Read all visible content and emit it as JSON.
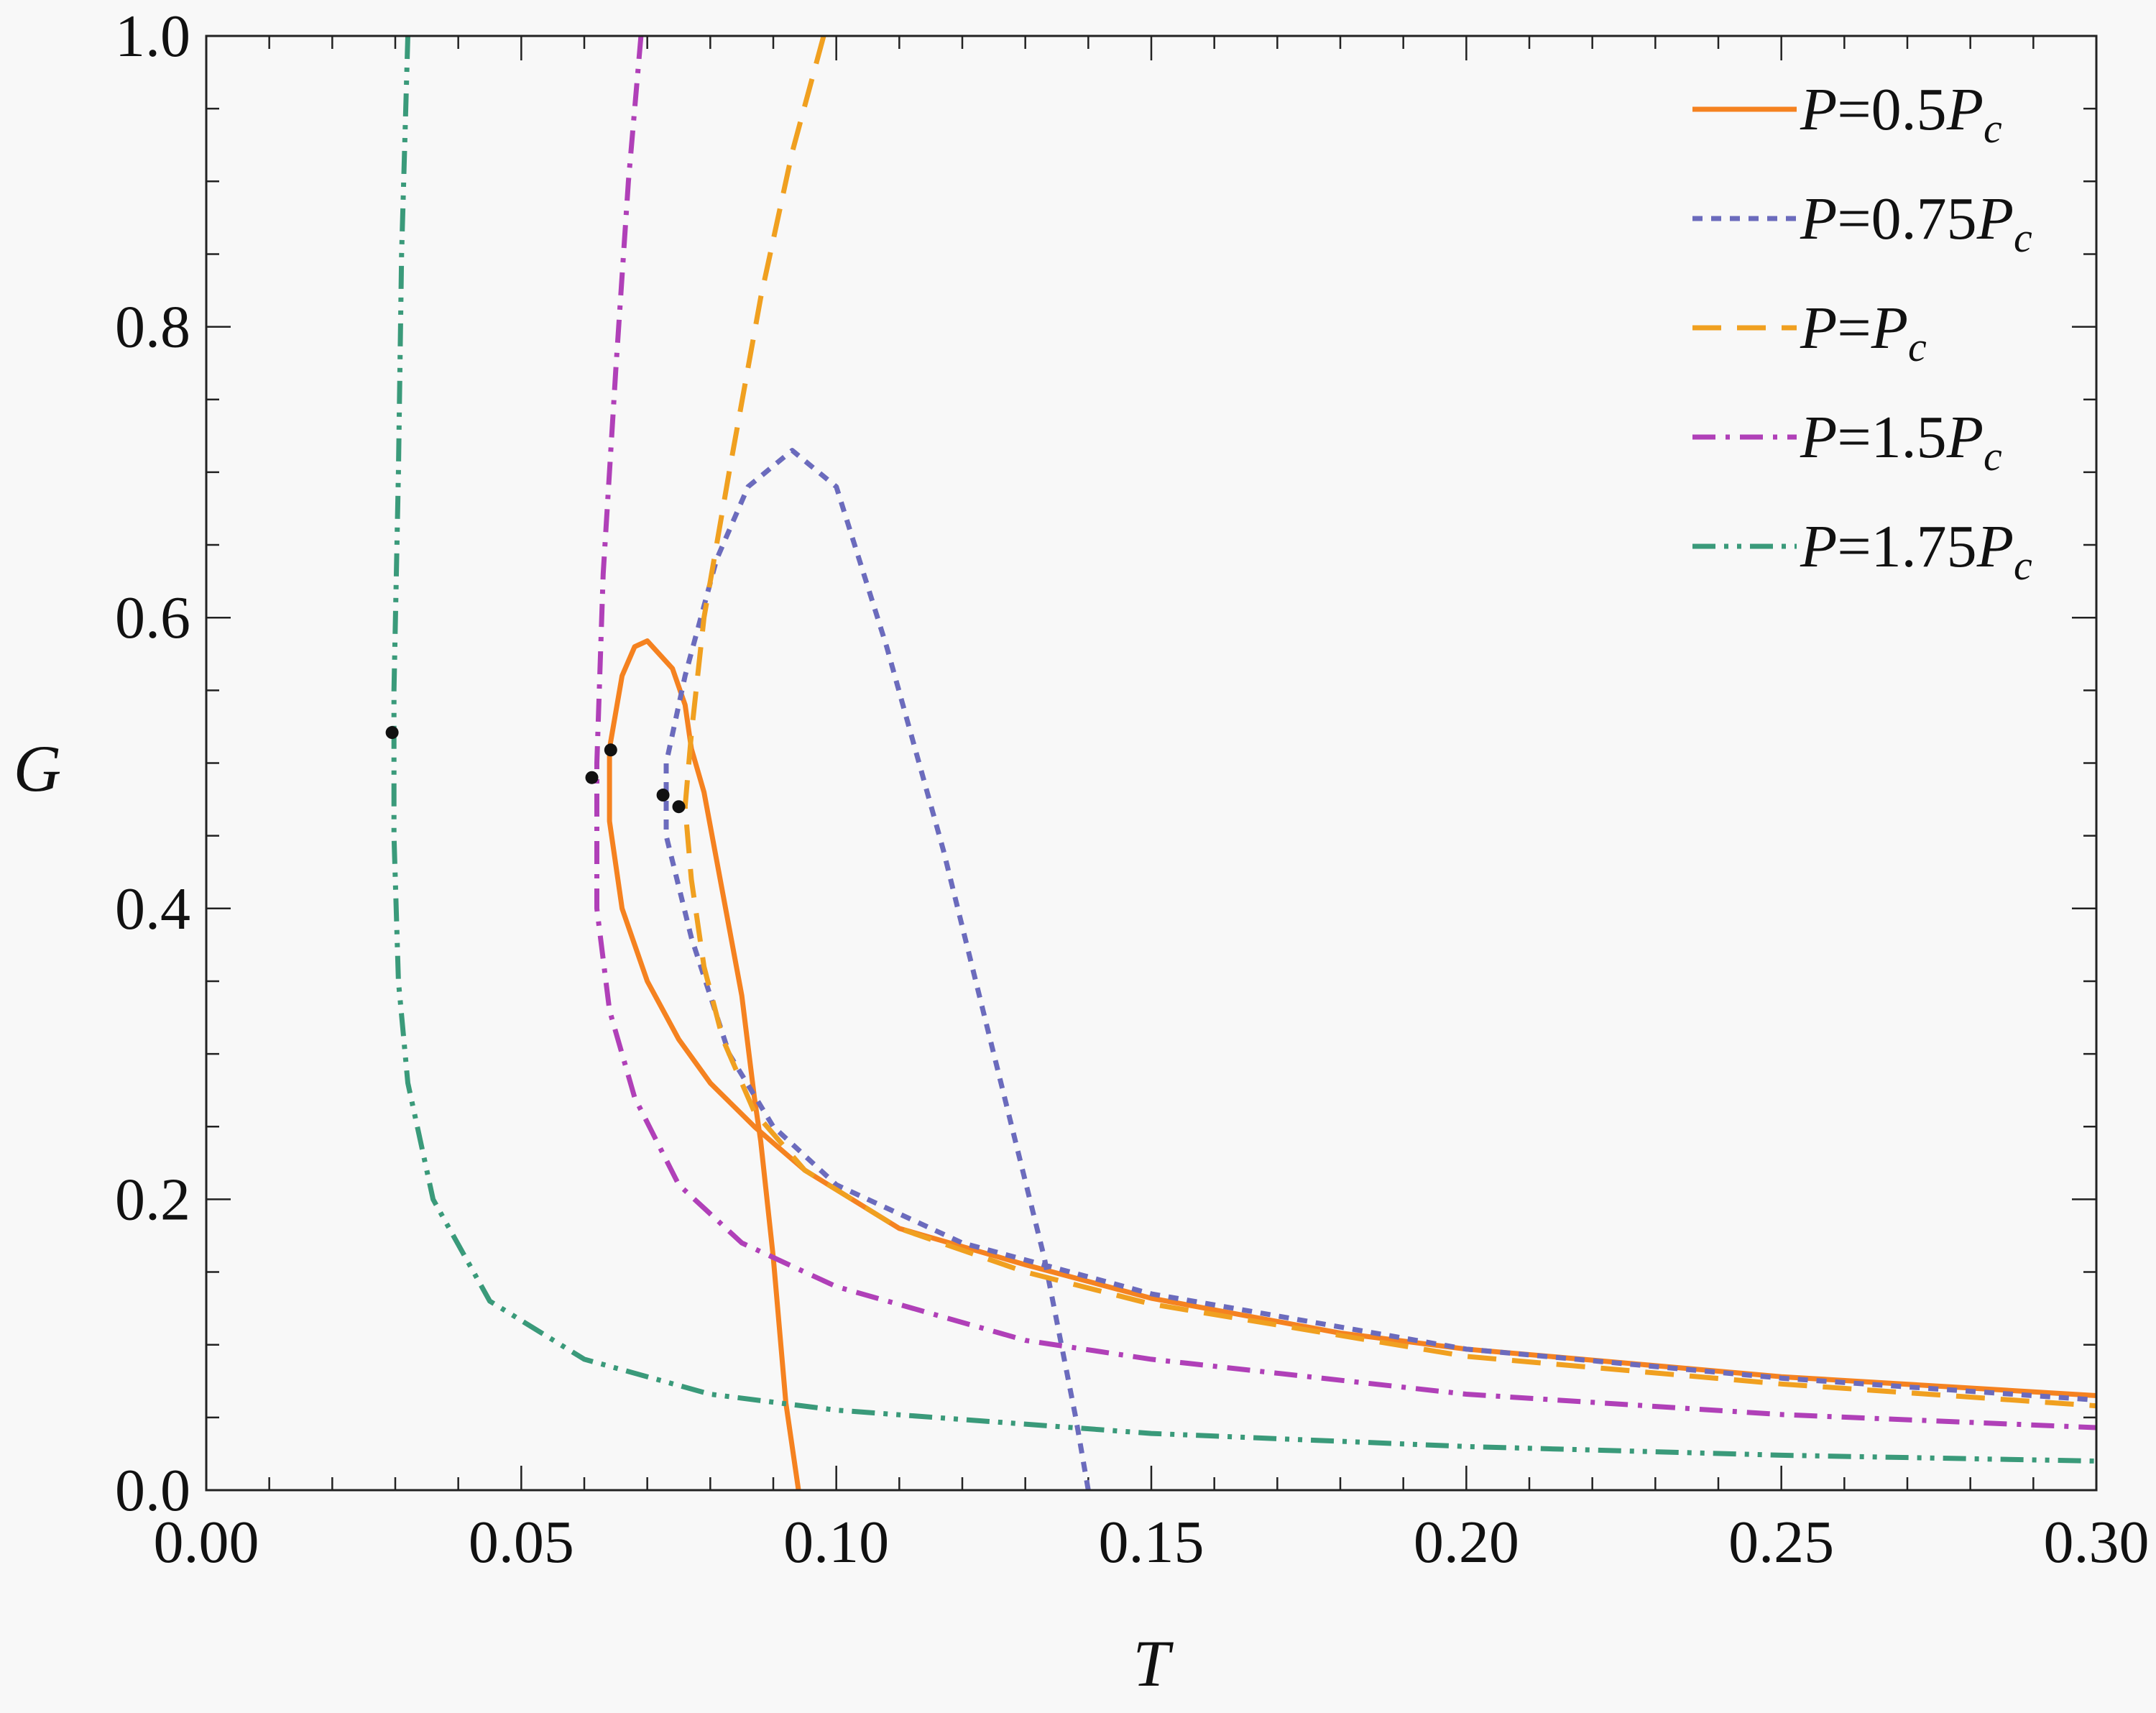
{
  "chart_data": {
    "type": "line",
    "xlabel": "T",
    "ylabel": "G",
    "xlim": [
      0,
      0.3
    ],
    "ylim": [
      0,
      1
    ],
    "x_ticks": [
      "0.00",
      "0.05",
      "0.10",
      "0.15",
      "0.20",
      "0.25",
      "0.30"
    ],
    "y_ticks": [
      "0.0",
      "0.2",
      "0.4",
      "0.6",
      "0.8",
      "1.0"
    ],
    "legend_position": "top-right",
    "series": [
      {
        "name": "P=0.5Pc",
        "name_parts": {
          "lhs": "P",
          "coef": "0.5",
          "sym": "P",
          "sub": "c"
        },
        "color": "#f58220",
        "dash": "solid",
        "points": [
          [
            0.094,
            0.0
          ],
          [
            0.092,
            0.06
          ],
          [
            0.09,
            0.16
          ],
          [
            0.088,
            0.24
          ],
          [
            0.087,
            0.27
          ],
          [
            0.085,
            0.34
          ],
          [
            0.082,
            0.41
          ],
          [
            0.079,
            0.48
          ],
          [
            0.077,
            0.51
          ],
          [
            0.076,
            0.54
          ],
          [
            0.074,
            0.565
          ],
          [
            0.07,
            0.584
          ],
          [
            0.068,
            0.58
          ],
          [
            0.066,
            0.56
          ],
          [
            0.064,
            0.51
          ],
          [
            0.064,
            0.46
          ],
          [
            0.066,
            0.4
          ],
          [
            0.07,
            0.35
          ],
          [
            0.075,
            0.31
          ],
          [
            0.08,
            0.28
          ],
          [
            0.087,
            0.25
          ],
          [
            0.095,
            0.22
          ],
          [
            0.11,
            0.18
          ],
          [
            0.13,
            0.155
          ],
          [
            0.15,
            0.132
          ],
          [
            0.18,
            0.108
          ],
          [
            0.2,
            0.097
          ],
          [
            0.25,
            0.078
          ],
          [
            0.3,
            0.065
          ]
        ]
      },
      {
        "name": "P=0.75Pc",
        "name_parts": {
          "lhs": "P",
          "coef": "0.75",
          "sym": "P",
          "sub": "c"
        },
        "color": "#6b6bbd",
        "dash": "dotted",
        "points": [
          [
            0.14,
            0.0
          ],
          [
            0.138,
            0.05
          ],
          [
            0.133,
            0.16
          ],
          [
            0.125,
            0.3
          ],
          [
            0.117,
            0.44
          ],
          [
            0.108,
            0.58
          ],
          [
            0.1,
            0.69
          ],
          [
            0.093,
            0.715
          ],
          [
            0.086,
            0.69
          ],
          [
            0.081,
            0.64
          ],
          [
            0.076,
            0.56
          ],
          [
            0.073,
            0.5
          ],
          [
            0.073,
            0.45
          ],
          [
            0.077,
            0.38
          ],
          [
            0.083,
            0.3
          ],
          [
            0.09,
            0.25
          ],
          [
            0.1,
            0.21
          ],
          [
            0.12,
            0.17
          ],
          [
            0.15,
            0.135
          ],
          [
            0.2,
            0.097
          ],
          [
            0.25,
            0.077
          ],
          [
            0.3,
            0.062
          ]
        ]
      },
      {
        "name": "P=Pc",
        "name_parts": {
          "lhs": "P",
          "coef": "",
          "sym": "P",
          "sub": "c"
        },
        "color": "#f0a020",
        "dash": "dashed",
        "points": [
          [
            0.098,
            1.0
          ],
          [
            0.093,
            0.92
          ],
          [
            0.088,
            0.82
          ],
          [
            0.083,
            0.7
          ],
          [
            0.079,
            0.6
          ],
          [
            0.077,
            0.52
          ],
          [
            0.076,
            0.47
          ],
          [
            0.077,
            0.42
          ],
          [
            0.079,
            0.36
          ],
          [
            0.082,
            0.31
          ],
          [
            0.087,
            0.26
          ],
          [
            0.095,
            0.22
          ],
          [
            0.11,
            0.18
          ],
          [
            0.13,
            0.15
          ],
          [
            0.15,
            0.128
          ],
          [
            0.2,
            0.092
          ],
          [
            0.25,
            0.073
          ],
          [
            0.3,
            0.058
          ]
        ]
      },
      {
        "name": "P=1.5Pc",
        "name_parts": {
          "lhs": "P",
          "coef": "1.5",
          "sym": "P",
          "sub": "c"
        },
        "color": "#b040b8",
        "dash": "dashdot",
        "points": [
          [
            0.069,
            1.0
          ],
          [
            0.067,
            0.9
          ],
          [
            0.065,
            0.77
          ],
          [
            0.063,
            0.63
          ],
          [
            0.062,
            0.5
          ],
          [
            0.062,
            0.45
          ],
          [
            0.062,
            0.4
          ],
          [
            0.064,
            0.33
          ],
          [
            0.068,
            0.27
          ],
          [
            0.075,
            0.21
          ],
          [
            0.085,
            0.17
          ],
          [
            0.1,
            0.14
          ],
          [
            0.13,
            0.103
          ],
          [
            0.15,
            0.09
          ],
          [
            0.2,
            0.066
          ],
          [
            0.25,
            0.052
          ],
          [
            0.3,
            0.043
          ]
        ]
      },
      {
        "name": "P=1.75Pc",
        "name_parts": {
          "lhs": "P",
          "coef": "1.75",
          "sym": "P",
          "sub": "c"
        },
        "color": "#3a9a7a",
        "dash": "dashdotdot",
        "points": [
          [
            0.032,
            1.0
          ],
          [
            0.031,
            0.85
          ],
          [
            0.0305,
            0.7
          ],
          [
            0.0298,
            0.55
          ],
          [
            0.0298,
            0.45
          ],
          [
            0.0305,
            0.35
          ],
          [
            0.032,
            0.28
          ],
          [
            0.036,
            0.2
          ],
          [
            0.045,
            0.13
          ],
          [
            0.06,
            0.09
          ],
          [
            0.08,
            0.066
          ],
          [
            0.1,
            0.055
          ],
          [
            0.15,
            0.039
          ],
          [
            0.2,
            0.03
          ],
          [
            0.25,
            0.024
          ],
          [
            0.3,
            0.02
          ]
        ]
      }
    ],
    "markers": [
      {
        "x": 0.0295,
        "y": 0.521
      },
      {
        "x": 0.0612,
        "y": 0.49
      },
      {
        "x": 0.0642,
        "y": 0.509
      },
      {
        "x": 0.0725,
        "y": 0.478
      },
      {
        "x": 0.075,
        "y": 0.47
      }
    ]
  }
}
